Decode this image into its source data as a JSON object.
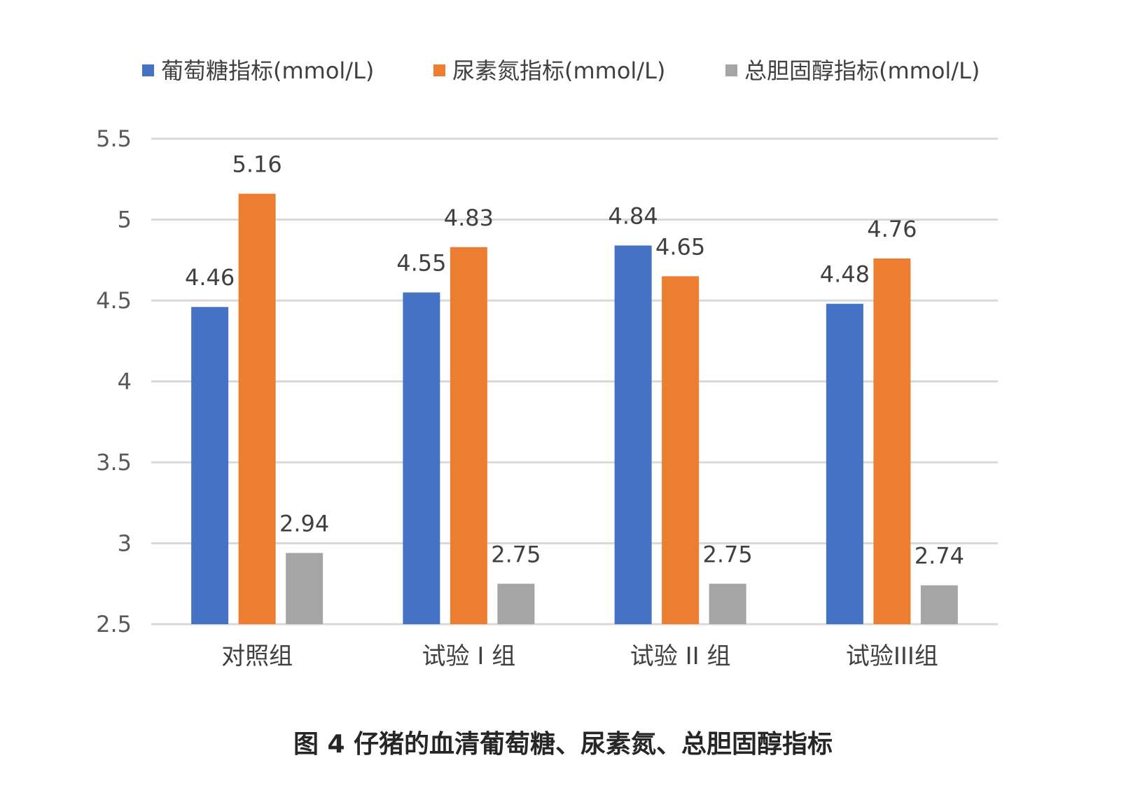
{
  "chart_data": {
    "type": "bar",
    "categories": [
      "对照组",
      "试验 I 组",
      "试验 II 组",
      "试验III组"
    ],
    "series": [
      {
        "name": "葡萄糖指标(mmol/L)",
        "values": [
          4.46,
          4.55,
          4.84,
          4.48
        ],
        "color": "#4472C4"
      },
      {
        "name": "尿素氮指标(mmol/L)",
        "values": [
          5.16,
          4.83,
          4.65,
          4.76
        ],
        "color": "#ED7D31"
      },
      {
        "name": "总胆固醇指标(mmol/L)",
        "values": [
          2.94,
          2.75,
          2.75,
          2.74
        ],
        "color": "#A5A5A5"
      }
    ],
    "ylim": [
      2.5,
      5.5
    ],
    "yticks": [
      "2.5",
      "3",
      "3.5",
      "4",
      "4.5",
      "5",
      "5.5"
    ],
    "grid": true,
    "gridline_color": "#D9D9D9",
    "legend_position": "top",
    "caption": "图 4  仔猪的血清葡萄糖、尿素氮、总胆固醇指标"
  }
}
